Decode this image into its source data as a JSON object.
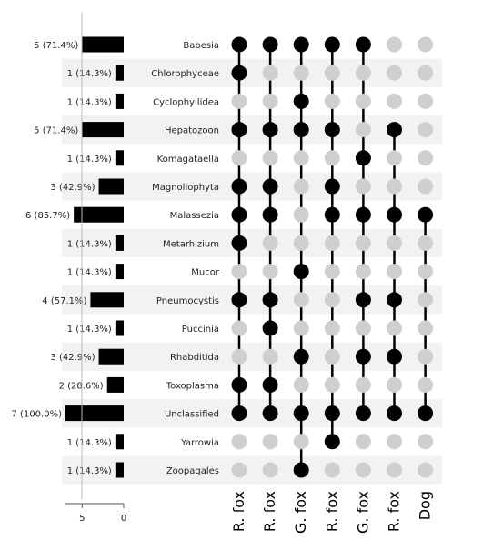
{
  "chart_data": {
    "type": "upset",
    "title": "",
    "sets": [
      "Babesia",
      "Chlorophyceae",
      "Cyclophyllidea",
      "Hepatozoon",
      "Komagataella",
      "Magnoliophyta",
      "Malassezia",
      "Metarhizium",
      "Mucor",
      "Pneumocystis",
      "Puccinia",
      "Rhabditida",
      "Toxoplasma",
      "Unclassified",
      "Yarrowia",
      "Zoopagales"
    ],
    "set_sizes": [
      5,
      1,
      1,
      5,
      1,
      3,
      6,
      1,
      1,
      4,
      1,
      3,
      2,
      7,
      1,
      1
    ],
    "set_size_labels": [
      "5 (71.4%)",
      "1 (14.3%)",
      "1 (14.3%)",
      "5 (71.4%)",
      "1 (14.3%)",
      "3 (42.9%)",
      "6 (85.7%)",
      "1 (14.3%)",
      "1 (14.3%)",
      "4 (57.1%)",
      "1 (14.3%)",
      "3 (42.9%)",
      "2 (28.6%)",
      "7 (100.0%)",
      "1 (14.3%)",
      "1 (14.3%)"
    ],
    "set_size_axis": {
      "ticks": [
        5,
        0
      ],
      "xlim": [
        7,
        0
      ],
      "inverted": true
    },
    "samples": [
      "R. fox",
      "R. fox",
      "G. fox",
      "R. fox",
      "G. fox",
      "R. fox",
      "Dog"
    ],
    "membership": [
      [
        "Babesia",
        "Chlorophyceae",
        "Hepatozoon",
        "Magnoliophyta",
        "Malassezia",
        "Metarhizium",
        "Pneumocystis",
        "Toxoplasma",
        "Unclassified"
      ],
      [
        "Babesia",
        "Hepatozoon",
        "Magnoliophyta",
        "Malassezia",
        "Pneumocystis",
        "Puccinia",
        "Toxoplasma",
        "Unclassified"
      ],
      [
        "Babesia",
        "Cyclophyllidea",
        "Hepatozoon",
        "Mucor",
        "Rhabditida",
        "Unclassified",
        "Zoopagales"
      ],
      [
        "Babesia",
        "Hepatozoon",
        "Magnoliophyta",
        "Malassezia",
        "Unclassified",
        "Yarrowia"
      ],
      [
        "Babesia",
        "Komagataella",
        "Malassezia",
        "Pneumocystis",
        "Rhabditida",
        "Unclassified"
      ],
      [
        "Hepatozoon",
        "Malassezia",
        "Pneumocystis",
        "Rhabditida",
        "Unclassified"
      ],
      [
        "Malassezia",
        "Unclassified"
      ]
    ],
    "grid": false,
    "colors": {
      "present": "#000000",
      "absent": "#cfcfcf",
      "stripe": "#f2f2f2",
      "bar": "#000000",
      "axis": "#555555"
    }
  }
}
